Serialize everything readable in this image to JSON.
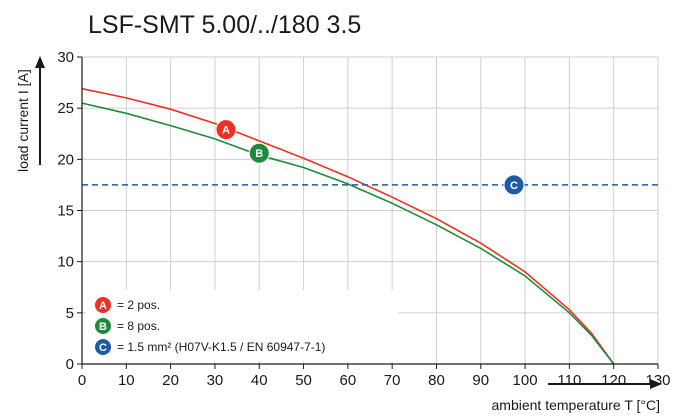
{
  "chart_data": {
    "type": "line",
    "title": "LSF-SMT 5.00/../180 3.5",
    "xlabel": "ambient temperature T [°C]",
    "ylabel": "load current I [A]",
    "xlim": [
      0,
      130
    ],
    "ylim": [
      0,
      30
    ],
    "xticks": [
      "0",
      "10",
      "20",
      "30",
      "40",
      "50",
      "60",
      "70",
      "80",
      "90",
      "100",
      "110",
      "120",
      "130"
    ],
    "yticks": [
      "0",
      "5",
      "10",
      "15",
      "20",
      "25",
      "30"
    ],
    "grid": true,
    "legend_position": "bottom-left",
    "series": [
      {
        "marker": "A",
        "legend_text": "= 2 pos.",
        "color": "#ee3124",
        "x": [
          0,
          10,
          20,
          30,
          40,
          50,
          60,
          70,
          80,
          90,
          100,
          110,
          115,
          120
        ],
        "y": [
          26.9,
          26.0,
          24.9,
          23.5,
          21.8,
          20.1,
          18.3,
          16.3,
          14.2,
          11.8,
          9.0,
          5.3,
          3.0,
          0
        ]
      },
      {
        "marker": "B",
        "legend_text": "= 8 pos.",
        "color": "#1f8a3c",
        "x": [
          0,
          10,
          20,
          30,
          40,
          50,
          60,
          70,
          80,
          90,
          100,
          110,
          115,
          120
        ],
        "y": [
          25.5,
          24.5,
          23.3,
          22.0,
          20.4,
          19.2,
          17.6,
          15.7,
          13.6,
          11.3,
          8.6,
          5.0,
          2.8,
          0
        ]
      },
      {
        "marker": "C",
        "legend_text": "= 1.5 mm² (H07V-K1.5 / EN 60947-7-1)",
        "color": "#1f5aa6",
        "style": "dashed",
        "x": [
          0,
          130
        ],
        "y": [
          17.5,
          17.5
        ]
      }
    ],
    "marker_points": [
      {
        "label": "A",
        "x": 32.5,
        "y": 22.9,
        "color": "#ee3124"
      },
      {
        "label": "B",
        "x": 40.0,
        "y": 20.6,
        "color": "#1f8a3c"
      },
      {
        "label": "C",
        "x": 97.5,
        "y": 17.5,
        "color": "#1f5aa6"
      }
    ]
  }
}
